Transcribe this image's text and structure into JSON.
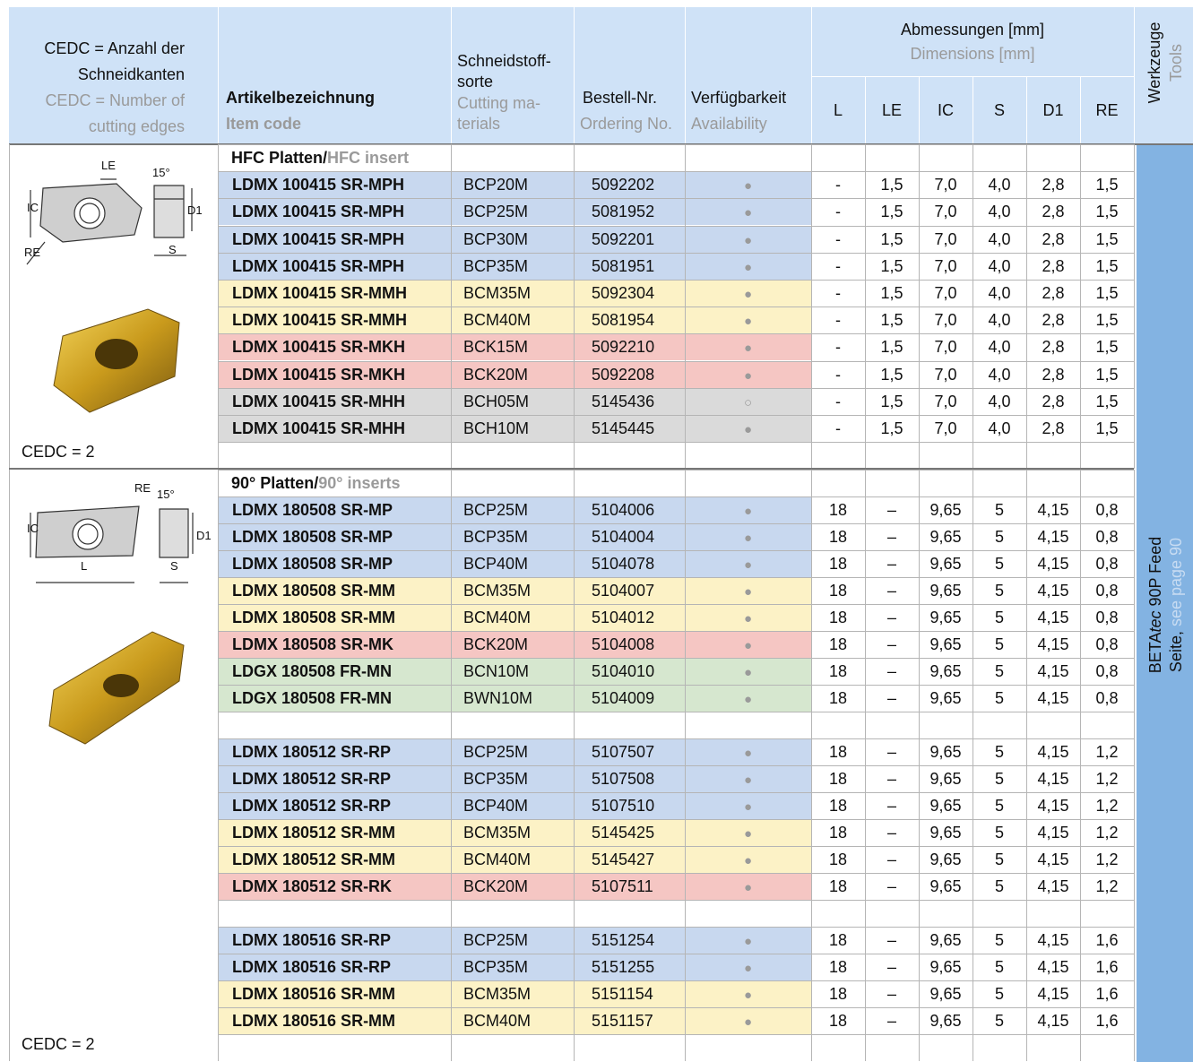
{
  "header": {
    "cedc_de": "CEDC = Anzahl der Schneidkanten",
    "cedc_en": "CEDC = Number of cutting edges",
    "article_de": "Artikelbezeichnung",
    "article_en": "Item code",
    "material_de": [
      "Schneidstoff-",
      "sorte"
    ],
    "material_en": [
      "Cutting ma-",
      "terials"
    ],
    "order_de": "Bestell-Nr.",
    "order_en": "Ordering No.",
    "avail_de": "Verfügbarkeit",
    "avail_en": "Availability",
    "dims_de": "Abmessungen [mm]",
    "dims_en": "Dimensions [mm]",
    "dims": [
      "L",
      "LE",
      "IC",
      "S",
      "D1",
      "RE"
    ],
    "tools_de": "Werkzeuge",
    "tools_en": "Tools"
  },
  "side": {
    "brand": "BETA",
    "brand_italic": "tec",
    "product": "90P Feed",
    "ref_de": "Seite,",
    "ref_en": "see page 90"
  },
  "sections": [
    {
      "title_de": "HFC Platten/",
      "title_en": "HFC insert",
      "cedc": "CEDC = 2",
      "labels": [
        "LE",
        "15°",
        "IC",
        "D1",
        "RE",
        "S"
      ],
      "groups": [
        [
          {
            "code": "LDMX 100415 SR-MPH",
            "material": "BCP20M",
            "order": "5092202",
            "avail": "●",
            "dims": [
              "-",
              "1,5",
              "7,0",
              "4,0",
              "2,8",
              "1,5"
            ],
            "color": "#c8d8ef"
          },
          {
            "code": "LDMX 100415 SR-MPH",
            "material": "BCP25M",
            "order": "5081952",
            "avail": "●",
            "dims": [
              "-",
              "1,5",
              "7,0",
              "4,0",
              "2,8",
              "1,5"
            ],
            "color": "#c8d8ef"
          },
          {
            "code": "LDMX 100415 SR-MPH",
            "material": "BCP30M",
            "order": "5092201",
            "avail": "●",
            "dims": [
              "-",
              "1,5",
              "7,0",
              "4,0",
              "2,8",
              "1,5"
            ],
            "color": "#c8d8ef"
          },
          {
            "code": "LDMX 100415 SR-MPH",
            "material": "BCP35M",
            "order": "5081951",
            "avail": "●",
            "dims": [
              "-",
              "1,5",
              "7,0",
              "4,0",
              "2,8",
              "1,5"
            ],
            "color": "#c8d8ef"
          },
          {
            "code": "LDMX 100415 SR-MMH",
            "material": "BCM35M",
            "order": "5092304",
            "avail": "●",
            "dims": [
              "-",
              "1,5",
              "7,0",
              "4,0",
              "2,8",
              "1,5"
            ],
            "color": "#fcf2c6"
          },
          {
            "code": "LDMX 100415 SR-MMH",
            "material": "BCM40M",
            "order": "5081954",
            "avail": "●",
            "dims": [
              "-",
              "1,5",
              "7,0",
              "4,0",
              "2,8",
              "1,5"
            ],
            "color": "#fcf2c6"
          },
          {
            "code": "LDMX 100415 SR-MKH",
            "material": "BCK15M",
            "order": "5092210",
            "avail": "●",
            "dims": [
              "-",
              "1,5",
              "7,0",
              "4,0",
              "2,8",
              "1,5"
            ],
            "color": "#f5c6c3"
          },
          {
            "code": "LDMX 100415 SR-MKH",
            "material": "BCK20M",
            "order": "5092208",
            "avail": "●",
            "dims": [
              "-",
              "1,5",
              "7,0",
              "4,0",
              "2,8",
              "1,5"
            ],
            "color": "#f5c6c3"
          },
          {
            "code": "LDMX 100415 SR-MHH",
            "material": "BCH05M",
            "order": "5145436",
            "avail": "○",
            "dims": [
              "-",
              "1,5",
              "7,0",
              "4,0",
              "2,8",
              "1,5"
            ],
            "color": "#dadada"
          },
          {
            "code": "LDMX 100415 SR-MHH",
            "material": "BCH10M",
            "order": "5145445",
            "avail": "●",
            "dims": [
              "-",
              "1,5",
              "7,0",
              "4,0",
              "2,8",
              "1,5"
            ],
            "color": "#dadada"
          }
        ]
      ]
    },
    {
      "title_de": "90° Platten/",
      "title_en": "90° inserts",
      "cedc": "CEDC = 2",
      "labels": [
        "RE",
        "15°",
        "IC",
        "D1",
        "L",
        "S"
      ],
      "groups": [
        [
          {
            "code": "LDMX 180508 SR-MP",
            "material": "BCP25M",
            "order": "5104006",
            "avail": "●",
            "dims": [
              "18",
              "–",
              "9,65",
              "5",
              "4,15",
              "0,8"
            ],
            "color": "#c8d8ef"
          },
          {
            "code": "LDMX 180508 SR-MP",
            "material": "BCP35M",
            "order": "5104004",
            "avail": "●",
            "dims": [
              "18",
              "–",
              "9,65",
              "5",
              "4,15",
              "0,8"
            ],
            "color": "#c8d8ef"
          },
          {
            "code": "LDMX 180508 SR-MP",
            "material": "BCP40M",
            "order": "5104078",
            "avail": "●",
            "dims": [
              "18",
              "–",
              "9,65",
              "5",
              "4,15",
              "0,8"
            ],
            "color": "#c8d8ef"
          },
          {
            "code": "LDMX 180508 SR-MM",
            "material": "BCM35M",
            "order": "5104007",
            "avail": "●",
            "dims": [
              "18",
              "–",
              "9,65",
              "5",
              "4,15",
              "0,8"
            ],
            "color": "#fcf2c6"
          },
          {
            "code": "LDMX 180508 SR-MM",
            "material": "BCM40M",
            "order": "5104012",
            "avail": "●",
            "dims": [
              "18",
              "–",
              "9,65",
              "5",
              "4,15",
              "0,8"
            ],
            "color": "#fcf2c6"
          },
          {
            "code": "LDMX 180508 SR-MK",
            "material": "BCK20M",
            "order": "5104008",
            "avail": "●",
            "dims": [
              "18",
              "–",
              "9,65",
              "5",
              "4,15",
              "0,8"
            ],
            "color": "#f5c6c3"
          },
          {
            "code": "LDGX 180508 FR-MN",
            "material": "BCN10M",
            "order": "5104010",
            "avail": "●",
            "dims": [
              "18",
              "–",
              "9,65",
              "5",
              "4,15",
              "0,8"
            ],
            "color": "#d6e7cf"
          },
          {
            "code": "LDGX 180508 FR-MN",
            "material": "BWN10M",
            "order": "5104009",
            "avail": "●",
            "dims": [
              "18",
              "–",
              "9,65",
              "5",
              "4,15",
              "0,8"
            ],
            "color": "#d6e7cf"
          }
        ],
        [
          {
            "code": "LDMX 180512 SR-RP",
            "material": "BCP25M",
            "order": "5107507",
            "avail": "●",
            "dims": [
              "18",
              "–",
              "9,65",
              "5",
              "4,15",
              "1,2"
            ],
            "color": "#c8d8ef"
          },
          {
            "code": "LDMX 180512 SR-RP",
            "material": "BCP35M",
            "order": "5107508",
            "avail": "●",
            "dims": [
              "18",
              "–",
              "9,65",
              "5",
              "4,15",
              "1,2"
            ],
            "color": "#c8d8ef"
          },
          {
            "code": "LDMX 180512 SR-RP",
            "material": "BCP40M",
            "order": "5107510",
            "avail": "●",
            "dims": [
              "18",
              "–",
              "9,65",
              "5",
              "4,15",
              "1,2"
            ],
            "color": "#c8d8ef"
          },
          {
            "code": "LDMX 180512 SR-MM",
            "material": "BCM35M",
            "order": "5145425",
            "avail": "●",
            "dims": [
              "18",
              "–",
              "9,65",
              "5",
              "4,15",
              "1,2"
            ],
            "color": "#fcf2c6"
          },
          {
            "code": "LDMX 180512 SR-MM",
            "material": "BCM40M",
            "order": "5145427",
            "avail": "●",
            "dims": [
              "18",
              "–",
              "9,65",
              "5",
              "4,15",
              "1,2"
            ],
            "color": "#fcf2c6"
          },
          {
            "code": "LDMX 180512 SR-RK",
            "material": "BCK20M",
            "order": "5107511",
            "avail": "●",
            "dims": [
              "18",
              "–",
              "9,65",
              "5",
              "4,15",
              "1,2"
            ],
            "color": "#f5c6c3"
          }
        ],
        [
          {
            "code": "LDMX 180516 SR-RP",
            "material": "BCP25M",
            "order": "5151254",
            "avail": "●",
            "dims": [
              "18",
              "–",
              "9,65",
              "5",
              "4,15",
              "1,6"
            ],
            "color": "#c8d8ef"
          },
          {
            "code": "LDMX 180516 SR-RP",
            "material": "BCP35M",
            "order": "5151255",
            "avail": "●",
            "dims": [
              "18",
              "–",
              "9,65",
              "5",
              "4,15",
              "1,6"
            ],
            "color": "#c8d8ef"
          },
          {
            "code": "LDMX 180516 SR-MM",
            "material": "BCM35M",
            "order": "5151154",
            "avail": "●",
            "dims": [
              "18",
              "–",
              "9,65",
              "5",
              "4,15",
              "1,6"
            ],
            "color": "#fcf2c6"
          },
          {
            "code": "LDMX 180516 SR-MM",
            "material": "BCM40M",
            "order": "5151157",
            "avail": "●",
            "dims": [
              "18",
              "–",
              "9,65",
              "5",
              "4,15",
              "1,6"
            ],
            "color": "#fcf2c6"
          }
        ]
      ]
    }
  ]
}
